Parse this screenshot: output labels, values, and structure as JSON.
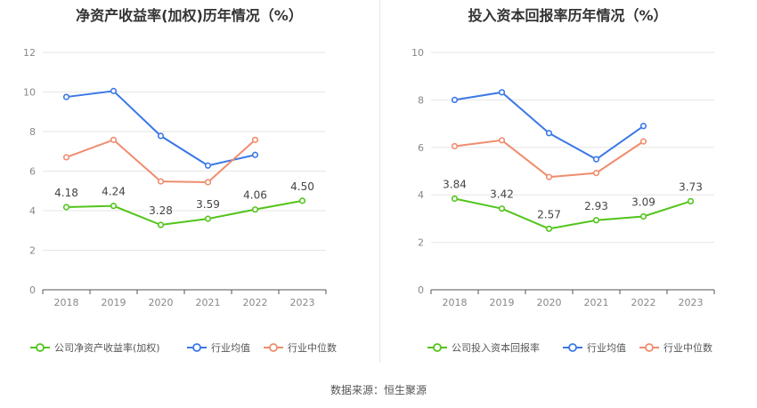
{
  "footer": {
    "source_label": "数据来源：恒生聚源"
  },
  "chart_data": [
    {
      "type": "line",
      "title": "净资产收益率(加权)历年情况（%）",
      "categories": [
        "2018",
        "2019",
        "2020",
        "2021",
        "2022",
        "2023"
      ],
      "ylim": [
        0,
        12
      ],
      "yticks": [
        0,
        2,
        4,
        6,
        8,
        10,
        12
      ],
      "grid": true,
      "legend_position": "bottom-left",
      "series": [
        {
          "name": "公司净资产收益率(加权)",
          "color": "#52c41a",
          "labels": true,
          "values": [
            4.18,
            4.24,
            3.28,
            3.59,
            4.06,
            4.5
          ],
          "value_labels": [
            "4.18",
            "4.24",
            "3.28",
            "3.59",
            "4.06",
            "4.50"
          ]
        },
        {
          "name": "行业均值",
          "color": "#3b78e7",
          "labels": false,
          "values": [
            9.75,
            10.05,
            7.78,
            6.28,
            6.82,
            null
          ]
        },
        {
          "name": "行业中位数",
          "color": "#f08c6e",
          "labels": false,
          "values": [
            6.7,
            7.58,
            5.48,
            5.44,
            7.58,
            null
          ]
        }
      ]
    },
    {
      "type": "line",
      "title": "投入资本回报率历年情况（%）",
      "categories": [
        "2018",
        "2019",
        "2020",
        "2021",
        "2022",
        "2023"
      ],
      "ylim": [
        0,
        10
      ],
      "yticks": [
        0,
        2,
        4,
        6,
        8,
        10
      ],
      "grid": true,
      "legend_position": "bottom-left",
      "series": [
        {
          "name": "公司投入资本回报率",
          "color": "#52c41a",
          "labels": true,
          "values": [
            3.84,
            3.42,
            2.57,
            2.93,
            3.09,
            3.73
          ],
          "value_labels": [
            "3.84",
            "3.42",
            "2.57",
            "2.93",
            "3.09",
            "3.73"
          ]
        },
        {
          "name": "行业均值",
          "color": "#3b78e7",
          "labels": false,
          "values": [
            8.0,
            8.32,
            6.6,
            5.5,
            6.9,
            null
          ]
        },
        {
          "name": "行业中位数",
          "color": "#f08c6e",
          "labels": false,
          "values": [
            6.05,
            6.3,
            4.75,
            4.92,
            6.25,
            null
          ]
        }
      ]
    }
  ]
}
